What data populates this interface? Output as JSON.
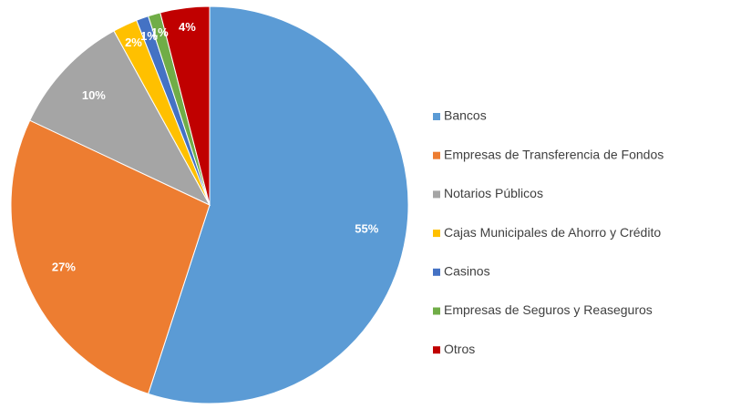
{
  "chart_data": {
    "type": "pie",
    "categories": [
      "Bancos",
      "Empresas de Transferencia de Fondos",
      "Notarios Públicos",
      "Cajas Municipales de Ahorro y Crédito",
      "Casinos",
      "Empresas de Seguros y Reaseguros",
      "Otros"
    ],
    "values": [
      55,
      27,
      10,
      2,
      1,
      1,
      4
    ],
    "value_labels": [
      "55%",
      "27%",
      "10%",
      "2%",
      "1%",
      "1%",
      "4%"
    ],
    "colors": [
      "#5b9bd5",
      "#ed7d31",
      "#a5a5a5",
      "#ffc000",
      "#4472c4",
      "#70ad47",
      "#c00000"
    ],
    "legend": "right"
  }
}
